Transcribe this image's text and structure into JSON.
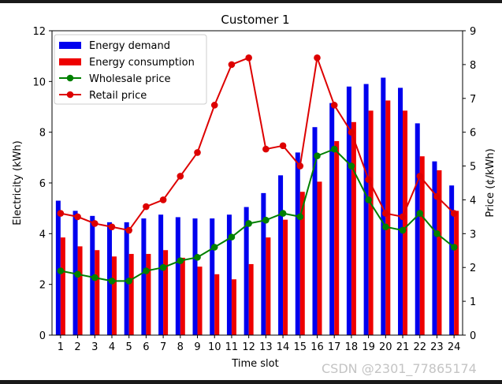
{
  "chart_data": {
    "type": "bar+line",
    "title": "Customer 1",
    "xlabel": "Time slot",
    "ylabel_left": "Electricity (kWh)",
    "ylabel_right": "Price (¢/kWh)",
    "ylim_left": [
      0,
      12
    ],
    "ylim_right": [
      0,
      9
    ],
    "yticks_left": [
      0,
      2,
      4,
      6,
      8,
      10,
      12
    ],
    "yticks_right": [
      0,
      1,
      2,
      3,
      4,
      5,
      6,
      7,
      8,
      9
    ],
    "categories": [
      "1",
      "2",
      "3",
      "4",
      "5",
      "6",
      "7",
      "8",
      "9",
      "10",
      "11",
      "12",
      "13",
      "14",
      "15",
      "16",
      "17",
      "18",
      "19",
      "20",
      "21",
      "22",
      "23",
      "24"
    ],
    "bar_series": [
      {
        "name": "Energy demand",
        "color": "#0000ee",
        "values": [
          5.3,
          4.9,
          4.7,
          4.45,
          4.45,
          4.6,
          4.75,
          4.65,
          4.6,
          4.6,
          4.75,
          5.05,
          5.6,
          6.3,
          7.2,
          8.2,
          9.15,
          9.8,
          9.9,
          10.15,
          9.75,
          8.35,
          6.85,
          5.9
        ]
      },
      {
        "name": "Energy consumption",
        "color": "#ee0000",
        "values": [
          3.85,
          3.5,
          3.35,
          3.1,
          3.2,
          3.2,
          3.35,
          3.05,
          2.7,
          2.4,
          2.2,
          2.8,
          3.85,
          4.55,
          5.65,
          6.05,
          7.65,
          8.4,
          8.85,
          9.25,
          8.85,
          7.05,
          6.5,
          4.9
        ]
      }
    ],
    "line_series": [
      {
        "name": "Wholesale price",
        "color": "#008000",
        "axis": "right",
        "values": [
          1.9,
          1.8,
          1.7,
          1.6,
          1.6,
          1.9,
          2.0,
          2.2,
          2.3,
          2.6,
          2.9,
          3.3,
          3.4,
          3.6,
          3.5,
          5.3,
          5.5,
          5.0,
          4.0,
          3.2,
          3.1,
          3.6,
          3.0,
          2.6
        ]
      },
      {
        "name": "Retail price",
        "color": "#dd0000",
        "axis": "right",
        "values": [
          3.6,
          3.5,
          3.3,
          3.2,
          3.1,
          3.8,
          4.0,
          4.7,
          5.4,
          6.8,
          8.0,
          8.2,
          5.5,
          5.6,
          5.0,
          8.2,
          6.8,
          6.0,
          4.6,
          3.6,
          3.5,
          4.7,
          4.1,
          3.6
        ]
      }
    ],
    "legend_position": "top-left"
  },
  "watermark": "CSDN @2301_77865174"
}
